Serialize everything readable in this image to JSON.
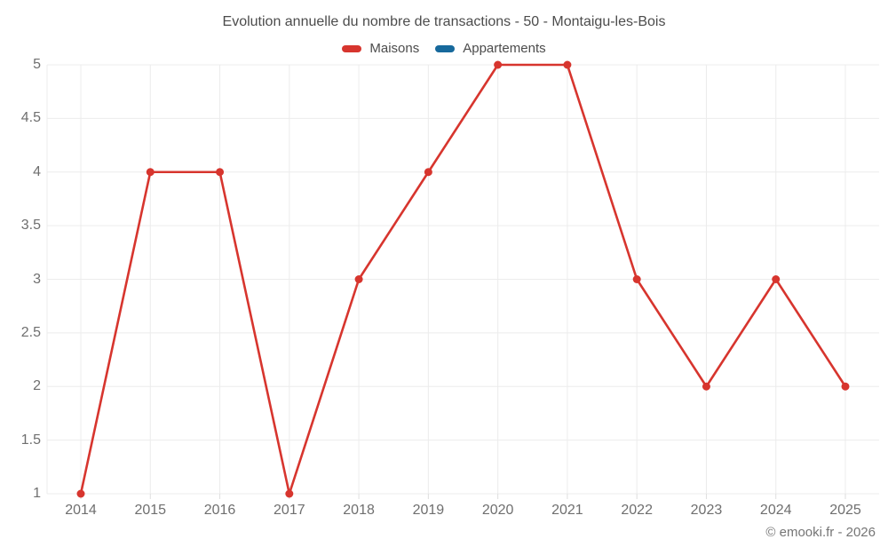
{
  "chart": {
    "title": "Evolution annuelle du nombre de transactions - 50 - Montaigu-les-Bois"
  },
  "footer": {
    "text": "© emooki.fr - 2026"
  },
  "colors": {
    "background": "#ffffff",
    "grid": "#ececec",
    "tick": "#dedede",
    "axis_text": "#6f6f6f",
    "title_text": "#4c4c4c",
    "maisons": "#d7352e",
    "appartements": "#17699c"
  },
  "chart_data": {
    "type": "line",
    "title": "Evolution annuelle du nombre de transactions - 50 - Montaigu-les-Bois",
    "categories": [
      "2014",
      "2015",
      "2016",
      "2017",
      "2018",
      "2019",
      "2020",
      "2021",
      "2022",
      "2023",
      "2024",
      "2025"
    ],
    "series": [
      {
        "name": "Maisons",
        "color": "#d7352e",
        "values": [
          1,
          4,
          4,
          1,
          3,
          4,
          5,
          5,
          3,
          2,
          3,
          2
        ]
      },
      {
        "name": "Appartements",
        "color": "#17699c",
        "values": []
      }
    ],
    "xlabel": "",
    "ylabel": "",
    "ylim": [
      1,
      5
    ],
    "yticks": [
      1,
      1.5,
      2,
      2.5,
      3,
      3.5,
      4,
      4.5,
      5
    ],
    "grid": true,
    "legend_position": "top",
    "marker": "circle"
  }
}
